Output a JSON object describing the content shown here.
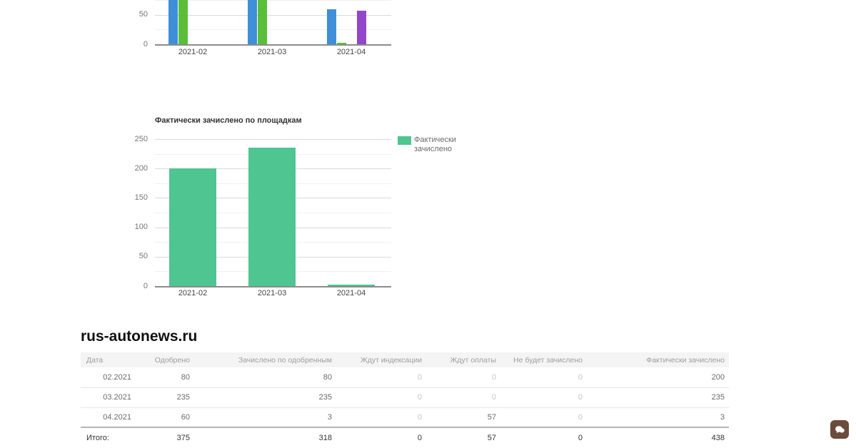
{
  "charts": [
    {
      "id": "approved-by-platforms-chart",
      "type": "bar",
      "note": "top of chart scrolled out of view; only bottom of plot visible",
      "categories": [
        "2021-02",
        "2021-03",
        "2021-04"
      ],
      "series": [
        {
          "name": "series-blue",
          "color": "#3E8FD8",
          "values": [
            80,
            235,
            60
          ]
        },
        {
          "name": "series-green",
          "color": "#5ABE39",
          "values": [
            80,
            235,
            3
          ]
        },
        {
          "name": "series-hidden",
          "color": "#f1a400",
          "values": [
            0,
            0,
            0
          ]
        },
        {
          "name": "series-purple",
          "color": "#9147C9",
          "values": [
            0,
            0,
            57
          ]
        }
      ],
      "visible_y_ticks": [
        "50",
        "0"
      ],
      "ylim": [
        0,
        250
      ],
      "grid": true
    },
    {
      "id": "actually-credited-chart",
      "type": "bar",
      "title": "Фактически зачислено по площадкам",
      "categories": [
        "2021-02",
        "2021-03",
        "2021-04"
      ],
      "series": [
        {
          "name": "Фактически зачислено",
          "color": "#4FC591",
          "values": [
            200,
            235,
            3
          ]
        }
      ],
      "legend": {
        "position": "right",
        "line1": "Фактически",
        "line2": "зачислено",
        "color": "#4FC591"
      },
      "y_ticks": [
        "0",
        "50",
        "100",
        "150",
        "200",
        "250"
      ],
      "ylim": [
        0,
        250
      ],
      "grid": true
    }
  ],
  "report": {
    "site_title": "rus-autonews.ru",
    "table": {
      "columns": [
        "Дата",
        "Одобрено",
        "Зачислено по одобренным",
        "Ждут индексации",
        "Ждут оплаты",
        "Не будет зачислено",
        "Фактически зачислено"
      ],
      "rows": [
        [
          "02.2021",
          "80",
          "80",
          "0",
          "0",
          "0",
          "200"
        ],
        [
          "03.2021",
          "235",
          "235",
          "0",
          "0",
          "0",
          "235"
        ],
        [
          "04.2021",
          "60",
          "3",
          "0",
          "57",
          "0",
          "3"
        ]
      ],
      "footer": [
        "Итого:",
        "375",
        "318",
        "0",
        "57",
        "0",
        "438"
      ]
    }
  },
  "chat_widget": {
    "icon": "chat-bubble-icon",
    "color": "#6a4b3c"
  }
}
